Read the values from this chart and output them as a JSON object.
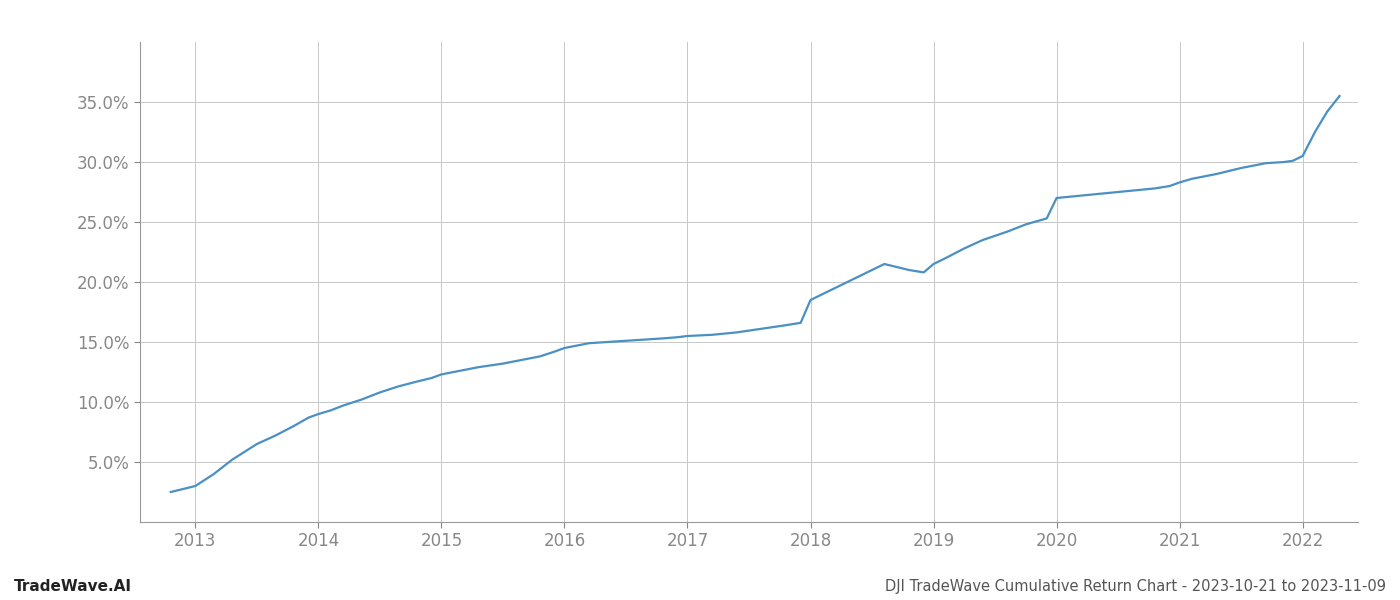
{
  "title": "DJI TradeWave Cumulative Return Chart - 2023-10-21 to 2023-11-09",
  "watermark": "TradeWave.AI",
  "line_color": "#4a90c4",
  "background_color": "#ffffff",
  "grid_color": "#c8c8c8",
  "x_years": [
    2013,
    2014,
    2015,
    2016,
    2017,
    2018,
    2019,
    2020,
    2021,
    2022
  ],
  "x_values": [
    2012.8,
    2013.0,
    2013.15,
    2013.3,
    2013.5,
    2013.65,
    2013.8,
    2013.92,
    2014.0,
    2014.1,
    2014.2,
    2014.35,
    2014.5,
    2014.65,
    2014.8,
    2014.92,
    2015.0,
    2015.15,
    2015.3,
    2015.5,
    2015.65,
    2015.8,
    2015.92,
    2016.0,
    2016.1,
    2016.2,
    2016.35,
    2016.5,
    2016.65,
    2016.8,
    2016.92,
    2017.0,
    2017.2,
    2017.4,
    2017.6,
    2017.8,
    2017.92,
    2018.0,
    2018.2,
    2018.4,
    2018.6,
    2018.8,
    2018.92,
    2019.0,
    2019.1,
    2019.25,
    2019.4,
    2019.6,
    2019.75,
    2019.92,
    2020.0,
    2020.2,
    2020.4,
    2020.6,
    2020.8,
    2020.92,
    2021.0,
    2021.1,
    2021.3,
    2021.5,
    2021.7,
    2021.85,
    2021.92,
    2022.0,
    2022.1,
    2022.2,
    2022.3
  ],
  "y_values": [
    2.5,
    3.0,
    4.0,
    5.2,
    6.5,
    7.2,
    8.0,
    8.7,
    9.0,
    9.3,
    9.7,
    10.2,
    10.8,
    11.3,
    11.7,
    12.0,
    12.3,
    12.6,
    12.9,
    13.2,
    13.5,
    13.8,
    14.2,
    14.5,
    14.7,
    14.9,
    15.0,
    15.1,
    15.2,
    15.3,
    15.4,
    15.5,
    15.6,
    15.8,
    16.1,
    16.4,
    16.6,
    18.5,
    19.5,
    20.5,
    21.5,
    21.0,
    20.8,
    21.5,
    22.0,
    22.8,
    23.5,
    24.2,
    24.8,
    25.3,
    27.0,
    27.2,
    27.4,
    27.6,
    27.8,
    28.0,
    28.3,
    28.6,
    29.0,
    29.5,
    29.9,
    30.0,
    30.1,
    30.5,
    32.5,
    34.2,
    35.5
  ],
  "ylim": [
    0,
    40
  ],
  "yticks": [
    5.0,
    10.0,
    15.0,
    20.0,
    25.0,
    30.0,
    35.0
  ],
  "xlim": [
    2012.55,
    2022.45
  ],
  "axis_color": "#999999",
  "tick_color": "#888888",
  "title_fontsize": 10.5,
  "watermark_fontsize": 11,
  "tick_fontsize": 12,
  "line_width": 1.6
}
